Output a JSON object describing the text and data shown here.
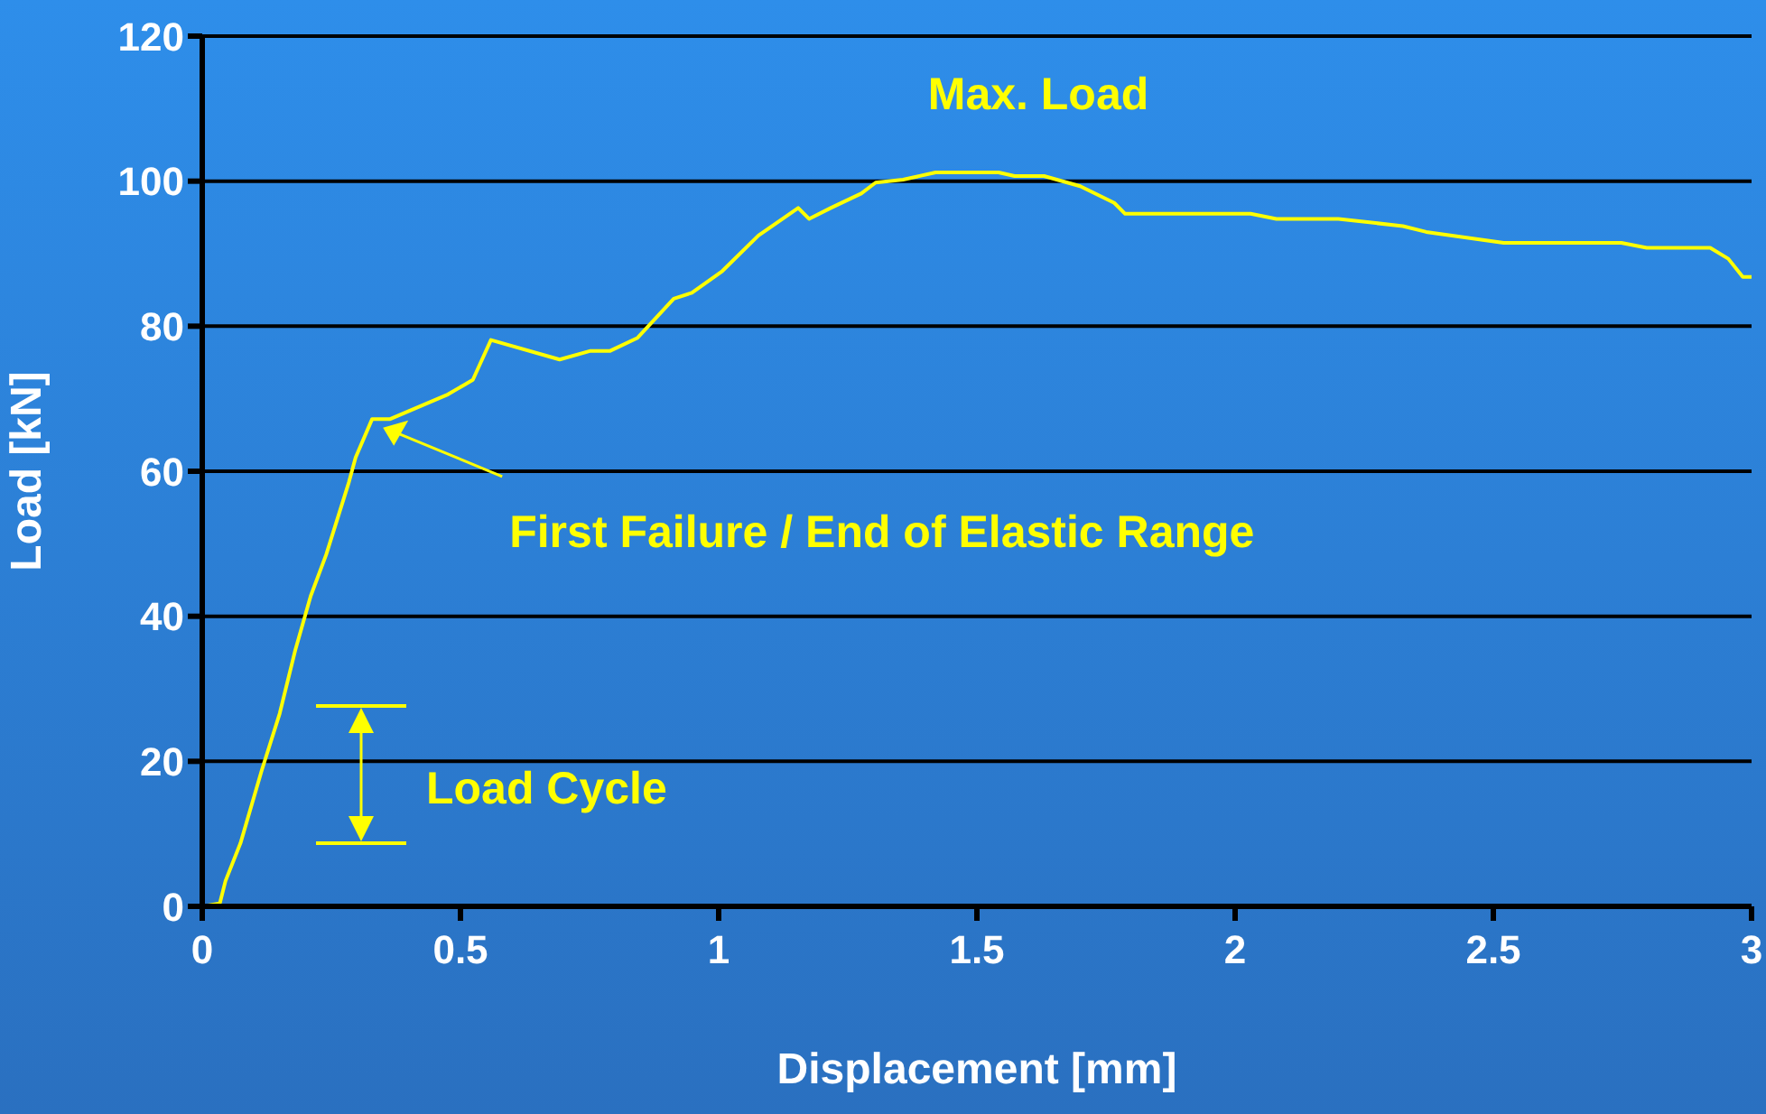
{
  "chart_data": {
    "type": "line",
    "xlabel": "Displacement [mm]",
    "ylabel": "Load [kN]",
    "xlim": [
      0,
      3
    ],
    "xticks": [
      0,
      0.5,
      1,
      1.5,
      2,
      2.5,
      3
    ],
    "ylim": [
      0,
      120
    ],
    "yticks": [
      0,
      20,
      40,
      60,
      80,
      100,
      120
    ],
    "grid": "y",
    "legend": false,
    "marker": "none",
    "line_style": "solid",
    "series": [
      {
        "color": "#ffff00",
        "x": [
          0,
          0.034,
          0.045,
          0.074,
          0.115,
          0.15,
          0.18,
          0.21,
          0.24,
          0.284,
          0.297,
          0.329,
          0.364,
          0.476,
          0.507,
          0.524,
          0.559,
          0.692,
          0.752,
          0.79,
          0.843,
          0.913,
          0.948,
          1.007,
          1.077,
          1.154,
          1.175,
          1.217,
          1.276,
          1.304,
          1.357,
          1.42,
          1.542,
          1.573,
          1.63,
          1.7,
          1.766,
          1.787,
          2.03,
          2.08,
          2.2,
          2.325,
          2.37,
          2.52,
          2.748,
          2.797,
          2.92,
          2.955,
          2.983,
          3.0
        ],
        "values": [
          0,
          0.4,
          3.5,
          8.7,
          18.7,
          26.6,
          35.3,
          42.8,
          48.5,
          58.5,
          61.9,
          67.2,
          67.2,
          70.6,
          71.9,
          72.6,
          78.1,
          75.4,
          76.6,
          76.6,
          78.4,
          83.8,
          84.6,
          87.6,
          92.5,
          96.3,
          94.8,
          96.3,
          98.3,
          99.8,
          100.2,
          101.2,
          101.2,
          100.7,
          100.7,
          99.3,
          97,
          95.5,
          95.5,
          94.8,
          94.8,
          93.8,
          93,
          91.5,
          91.5,
          90.8,
          90.8,
          89.3,
          86.8,
          86.8
        ]
      }
    ],
    "annotations": [
      {
        "text": "Max. Load",
        "x": 1.5,
        "y": 101
      },
      {
        "text": "First Failure / End of Elastic Range",
        "x": 0.35,
        "y": 66
      },
      "Load Cycle"
    ]
  }
}
